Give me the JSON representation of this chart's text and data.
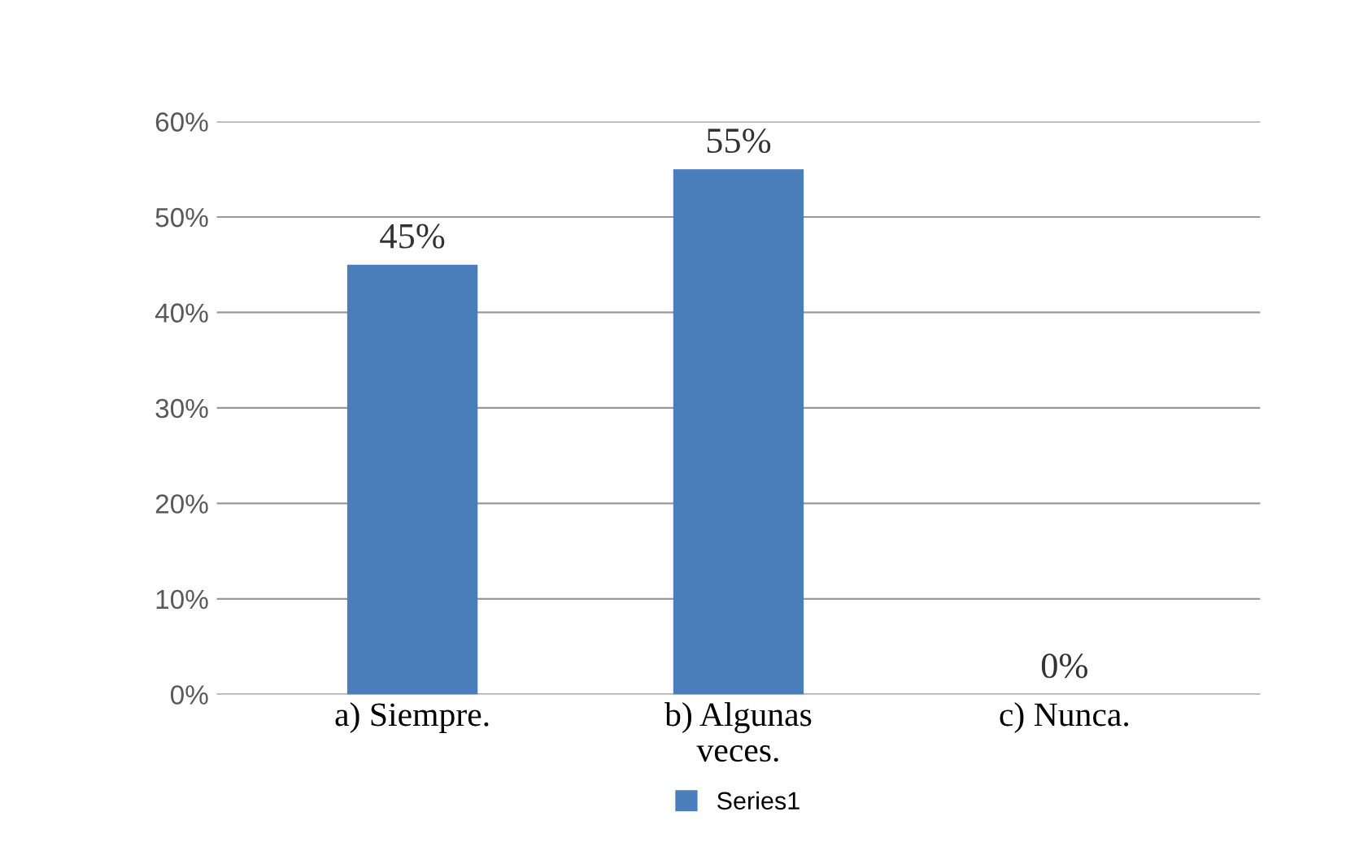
{
  "chart_data": {
    "type": "bar",
    "categories": [
      "a) Siempre.",
      "b) Algunas\nveces.",
      "c) Nunca."
    ],
    "series": [
      {
        "name": "Series1",
        "color": "#4a7ebb",
        "values": [
          45,
          55,
          0
        ],
        "value_labels": [
          "45%",
          "55%",
          "0%"
        ]
      }
    ],
    "ylim": [
      0,
      60
    ],
    "yticks": [
      {
        "value": 0,
        "label": "0%"
      },
      {
        "value": 10,
        "label": "10%"
      },
      {
        "value": 20,
        "label": "20%"
      },
      {
        "value": 30,
        "label": "30%"
      },
      {
        "value": 40,
        "label": "40%"
      },
      {
        "value": 50,
        "label": "50%"
      },
      {
        "value": 60,
        "label": "60%"
      }
    ],
    "grid": "y",
    "legend": "bottom"
  }
}
